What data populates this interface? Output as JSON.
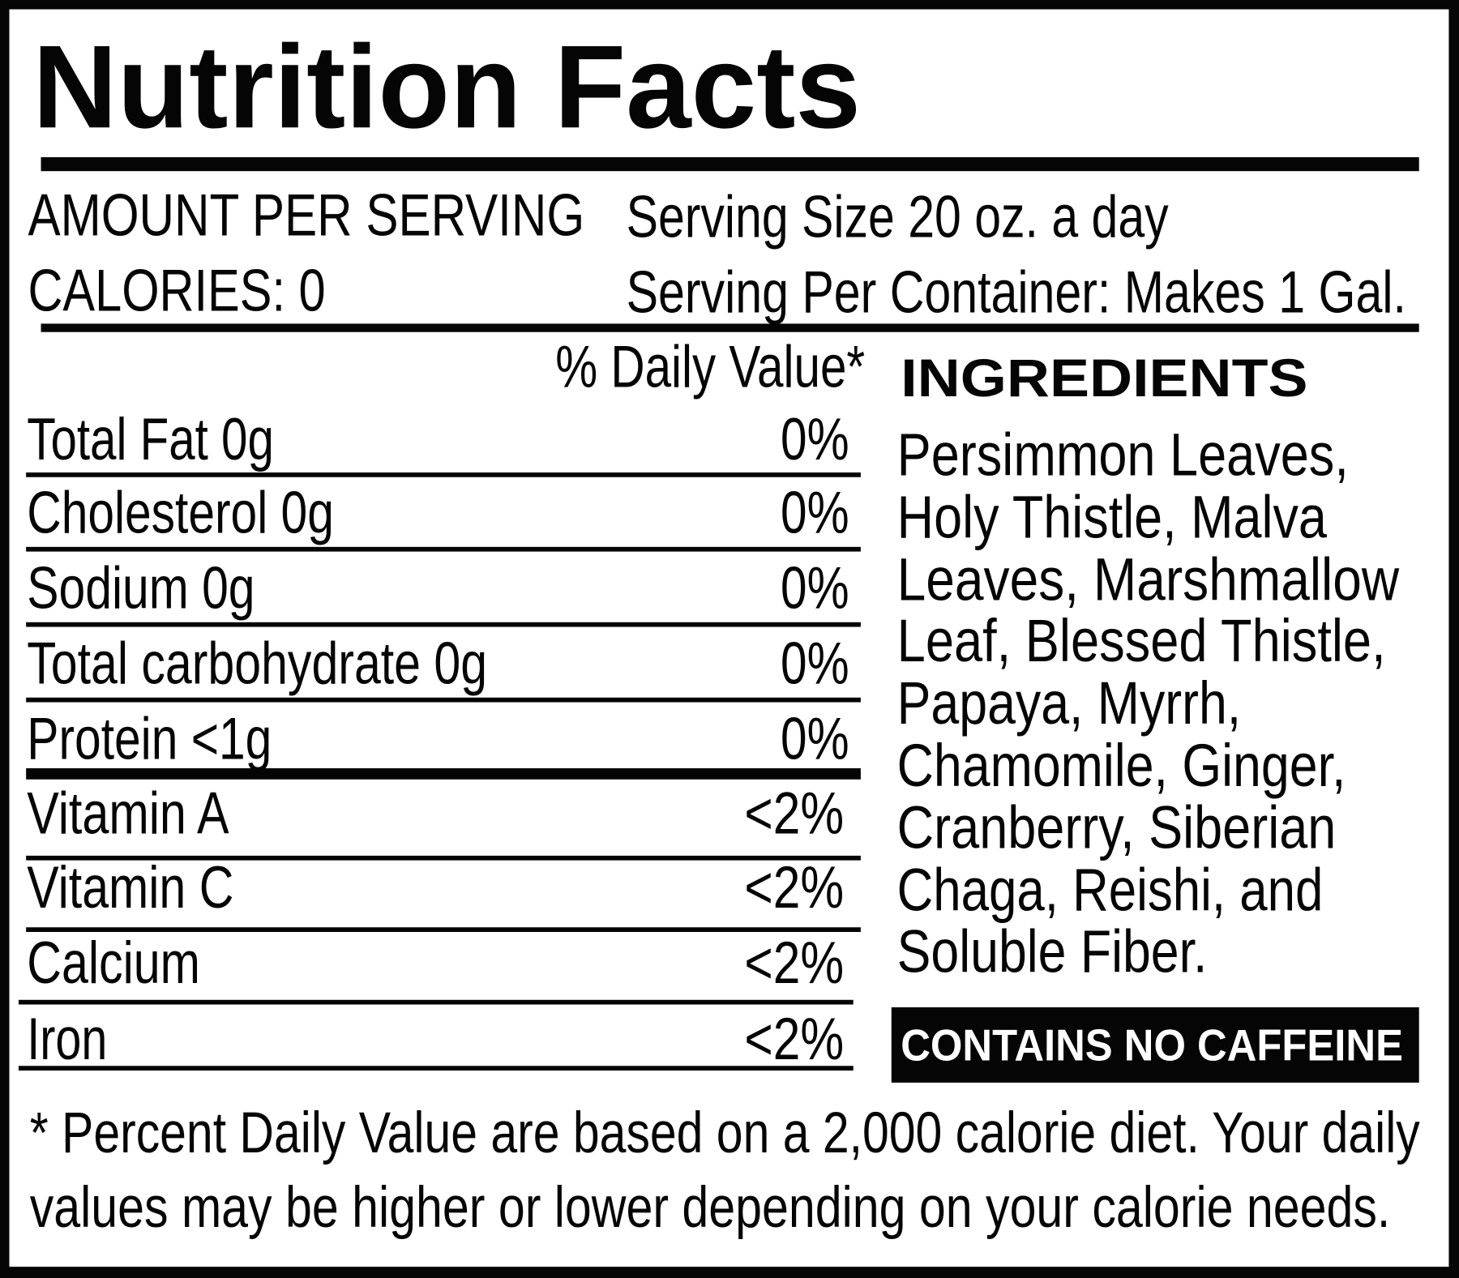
{
  "title": "Nutrition Facts",
  "header": {
    "amount_per_serving": "AMOUNT PER SERVING",
    "calories": "CALORIES: 0",
    "serving_size": "Serving Size 20 oz. a day",
    "servings_per_container": "Serving Per Container: Makes 1 Gal."
  },
  "daily_value_header": "% Daily Value*",
  "nutrients": [
    {
      "label": "Total Fat 0g",
      "value": "0%"
    },
    {
      "label": "Cholesterol 0g",
      "value": "0%"
    },
    {
      "label": "Sodium 0g",
      "value": "0%"
    },
    {
      "label": "Total carbohydrate 0g",
      "value": "0%"
    },
    {
      "label": "Protein <1g",
      "value": "0%"
    },
    {
      "label": "Vitamin A",
      "value": "<2%"
    },
    {
      "label": "Vitamin C",
      "value": "<2%"
    },
    {
      "label": "Calcium",
      "value": "<2%"
    },
    {
      "label": "Iron",
      "value": "<2%"
    }
  ],
  "ingredients": {
    "heading": "INGREDIENTS",
    "lines": [
      "Persimmon Leaves,",
      "Holy Thistle, Malva",
      "Leaves, Marshmallow",
      "Leaf, Blessed Thistle,",
      "Papaya, Myrrh,",
      "Chamomile, Ginger,",
      "Cranberry, Siberian",
      "Chaga, Reishi, and",
      "Soluble Fiber."
    ]
  },
  "badge": "CONTAINS NO CAFFEINE",
  "footnote": [
    "* Percent Daily Value are based on a 2,000 calorie diet. Your daily",
    "values may be higher or lower depending on your calorie needs."
  ],
  "colors": {
    "ink": "#050505",
    "background": "#ffffff",
    "badge_text": "#ffffff"
  }
}
